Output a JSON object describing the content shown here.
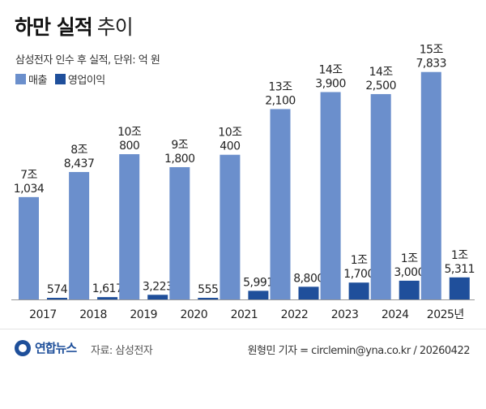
{
  "header": {
    "title_bold": "하만 실적",
    "title_light": "추이",
    "subtitle": "삼성전자 인수 후 실적, 단위: 억 원"
  },
  "legend": [
    {
      "label": "매출",
      "color": "#6b8fcc"
    },
    {
      "label": "영업이익",
      "color": "#1f4f9b"
    }
  ],
  "chart_data": {
    "type": "bar",
    "categories": [
      "2017",
      "2018",
      "2019",
      "2020",
      "2021",
      "2022",
      "2023",
      "2024",
      "2025년"
    ],
    "series": [
      {
        "name": "매출",
        "color": "#6b8fcc",
        "values": [
          71034,
          88437,
          100800,
          91800,
          100400,
          132100,
          143900,
          142500,
          157833
        ],
        "labels": [
          [
            "7조",
            "1,034"
          ],
          [
            "8조",
            "8,437"
          ],
          [
            "10조",
            "800"
          ],
          [
            "9조",
            "1,800"
          ],
          [
            "10조",
            "400"
          ],
          [
            "13조",
            "2,100"
          ],
          [
            "14조",
            "3,900"
          ],
          [
            "14조",
            "2,500"
          ],
          [
            "15조",
            "7,833"
          ]
        ]
      },
      {
        "name": "영업이익",
        "color": "#1f4f9b",
        "values": [
          574,
          1617,
          3223,
          555,
          5991,
          8800,
          11700,
          13000,
          15311
        ],
        "labels": [
          [
            "574"
          ],
          [
            "1,617"
          ],
          [
            "3,223"
          ],
          [
            "555"
          ],
          [
            "5,991"
          ],
          [
            "8,800"
          ],
          [
            "1조",
            "1,700"
          ],
          [
            "1조",
            "3,000"
          ],
          [
            "1조",
            "5,311"
          ]
        ]
      }
    ],
    "ylim": [
      0,
      165000
    ],
    "grid": false
  },
  "footer": {
    "logo_text": "연합뉴스",
    "source": "자료: 삼성전자",
    "credit": "원형민 기자 = circlemin@yna.co.kr / 20260422"
  }
}
